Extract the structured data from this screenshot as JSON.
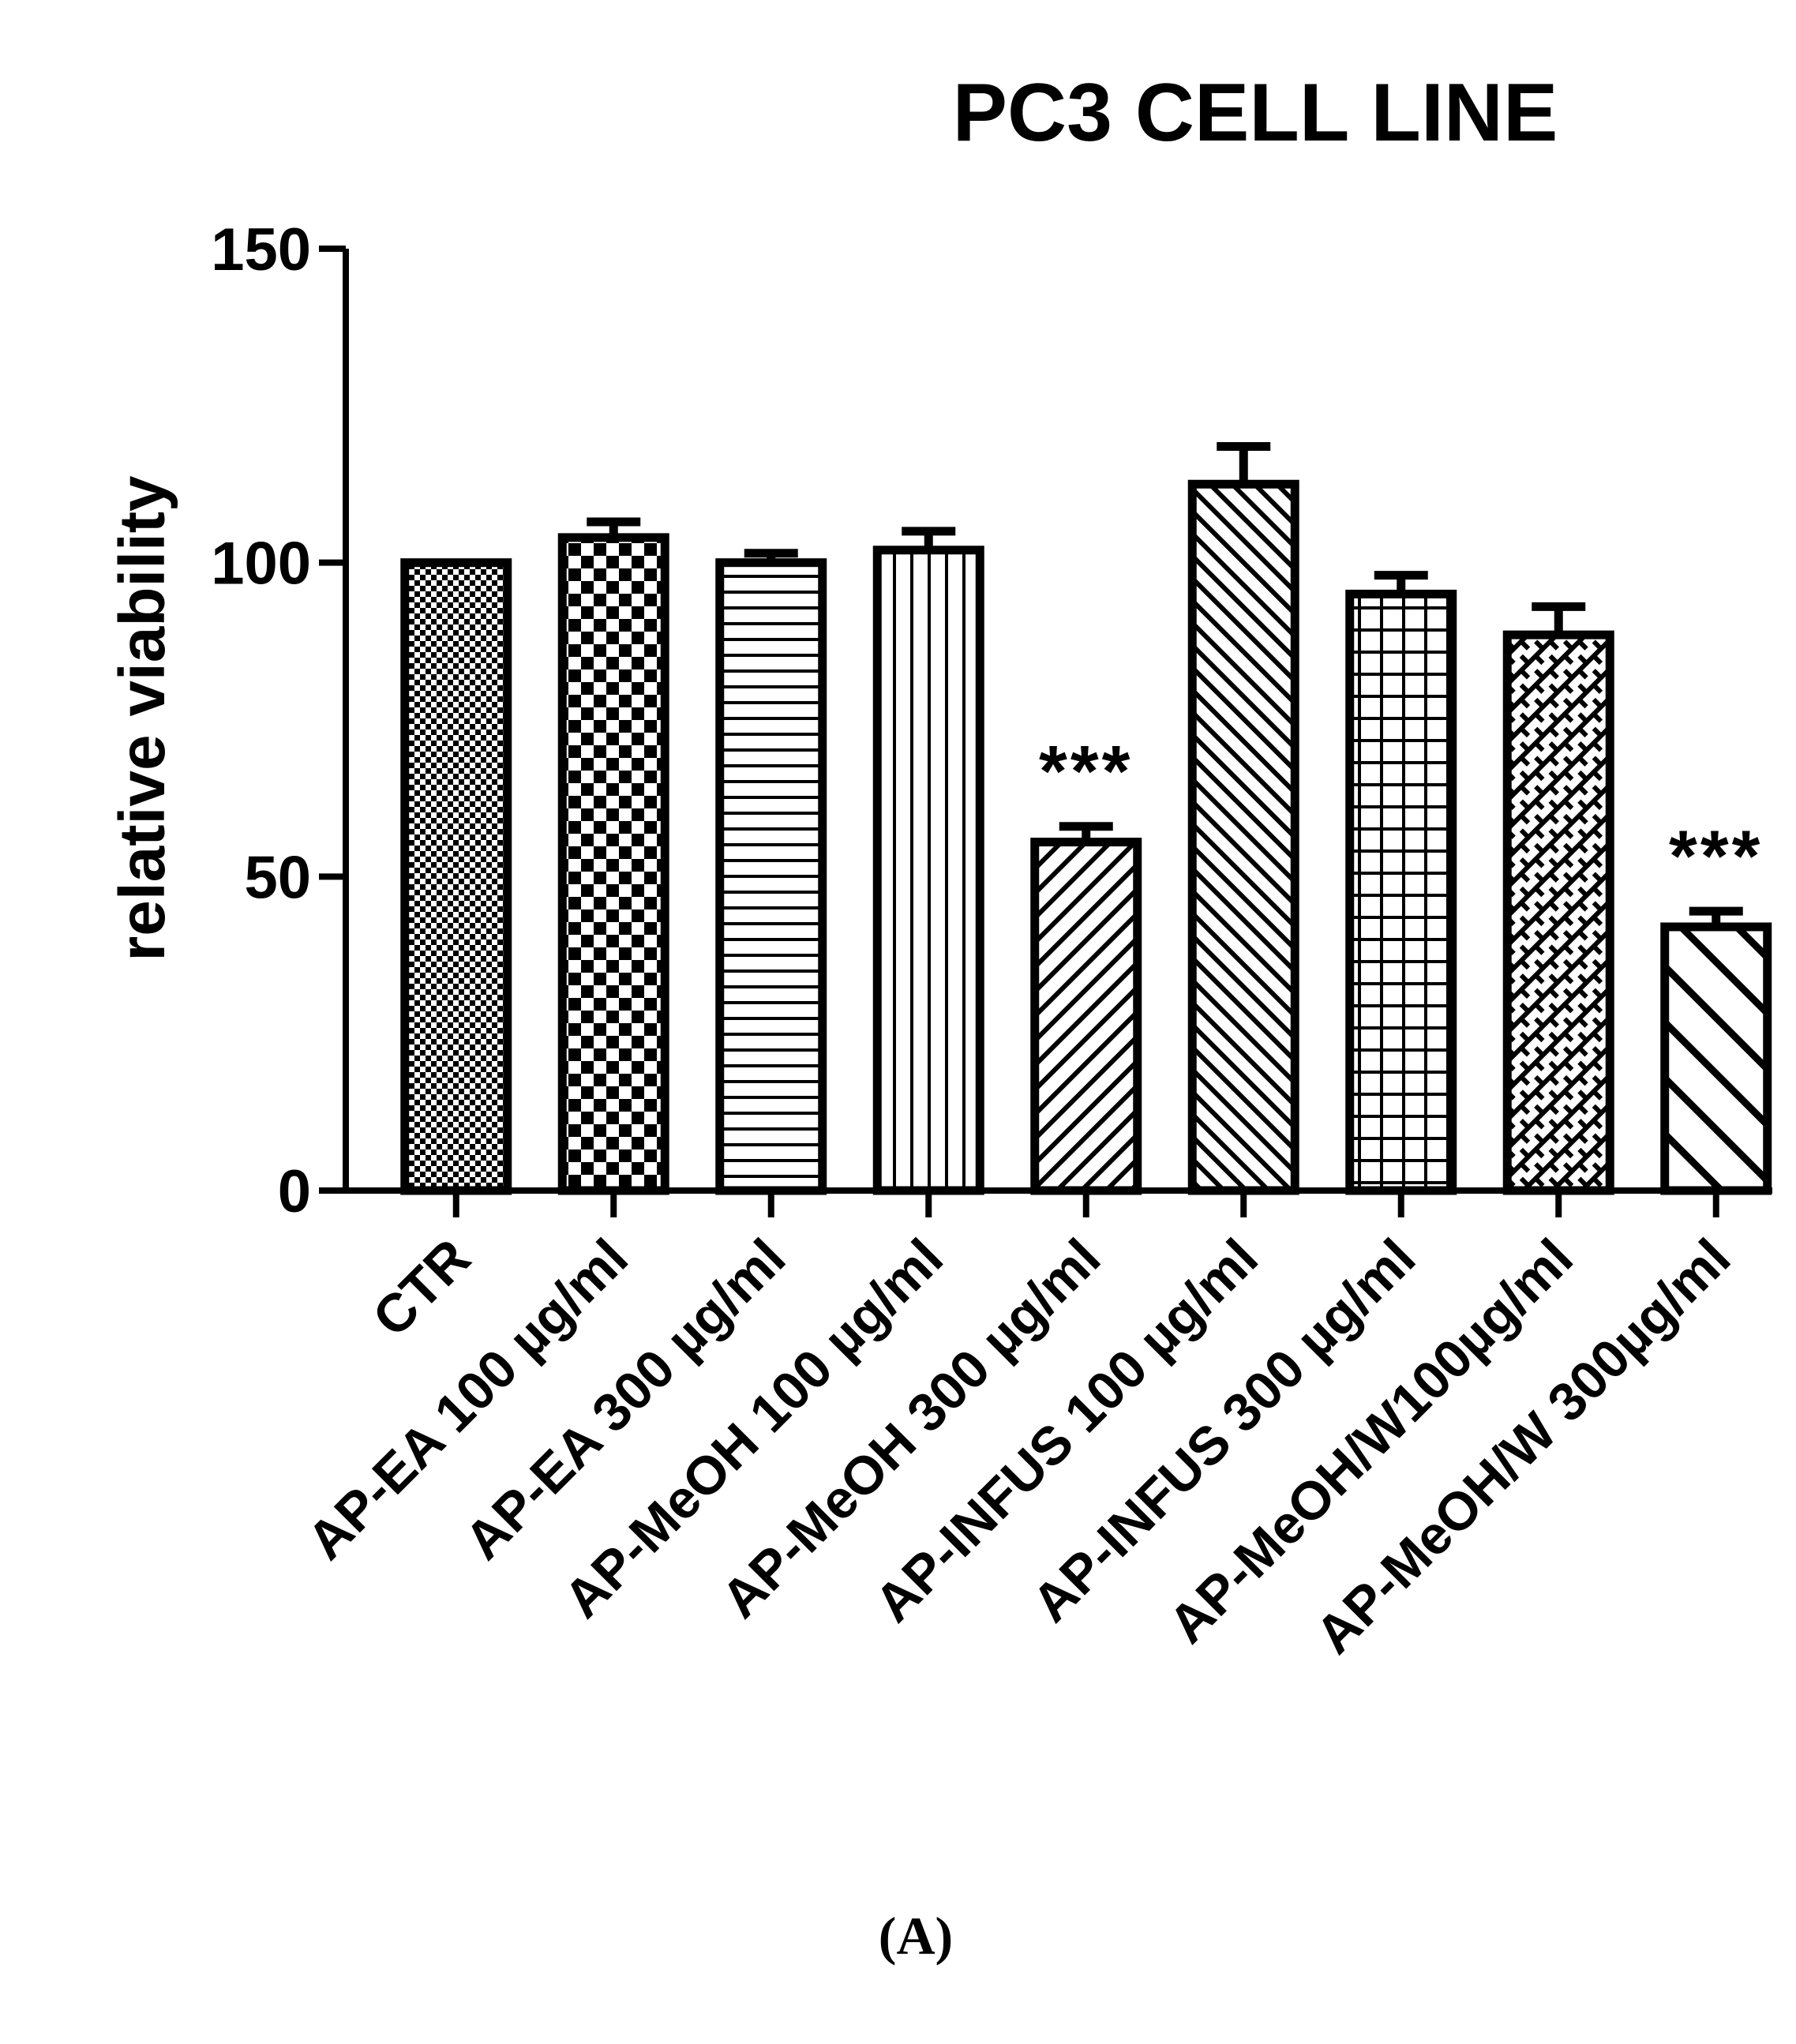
{
  "chart_data": {
    "type": "bar",
    "title": "PC3 CELL LINE",
    "xlabel": "",
    "ylabel": "relative viability",
    "ylim": [
      0,
      150
    ],
    "yticks": [
      0,
      50,
      100,
      150
    ],
    "categories": [
      "CTR",
      "AP-EA 100 µg/ml",
      "AP-EA 300 µg/ml",
      "AP-MeOH 100 µg/ml",
      "AP-MeOH 300 µg/ml",
      "AP-INFUS 100 µg/ml",
      "AP-INFUS 300 µg/ml",
      "AP-MeOH/W100µg/ml",
      "AP-MeOH/W 300µg/ml"
    ],
    "values": [
      100,
      104,
      100,
      102,
      55.5,
      112.5,
      95,
      88.5,
      42
    ],
    "errors": [
      0,
      2.5,
      1.5,
      3,
      2.5,
      6,
      3,
      4.5,
      2.5
    ],
    "patterns": [
      "fine-checker",
      "checker",
      "horizontal-lines",
      "vertical-lines",
      "diagonal-fine",
      "diagonal-back-fine",
      "grid",
      "diagonal-crosshatch",
      "diagonal-wide"
    ],
    "annotations": [
      {
        "category_index": 4,
        "text": "***"
      },
      {
        "category_index": 8,
        "text": "***"
      }
    ],
    "grid": false,
    "legend": "none",
    "bar_color": "#ffffff",
    "edge_color": "#000000"
  },
  "panel_label": "(A)"
}
